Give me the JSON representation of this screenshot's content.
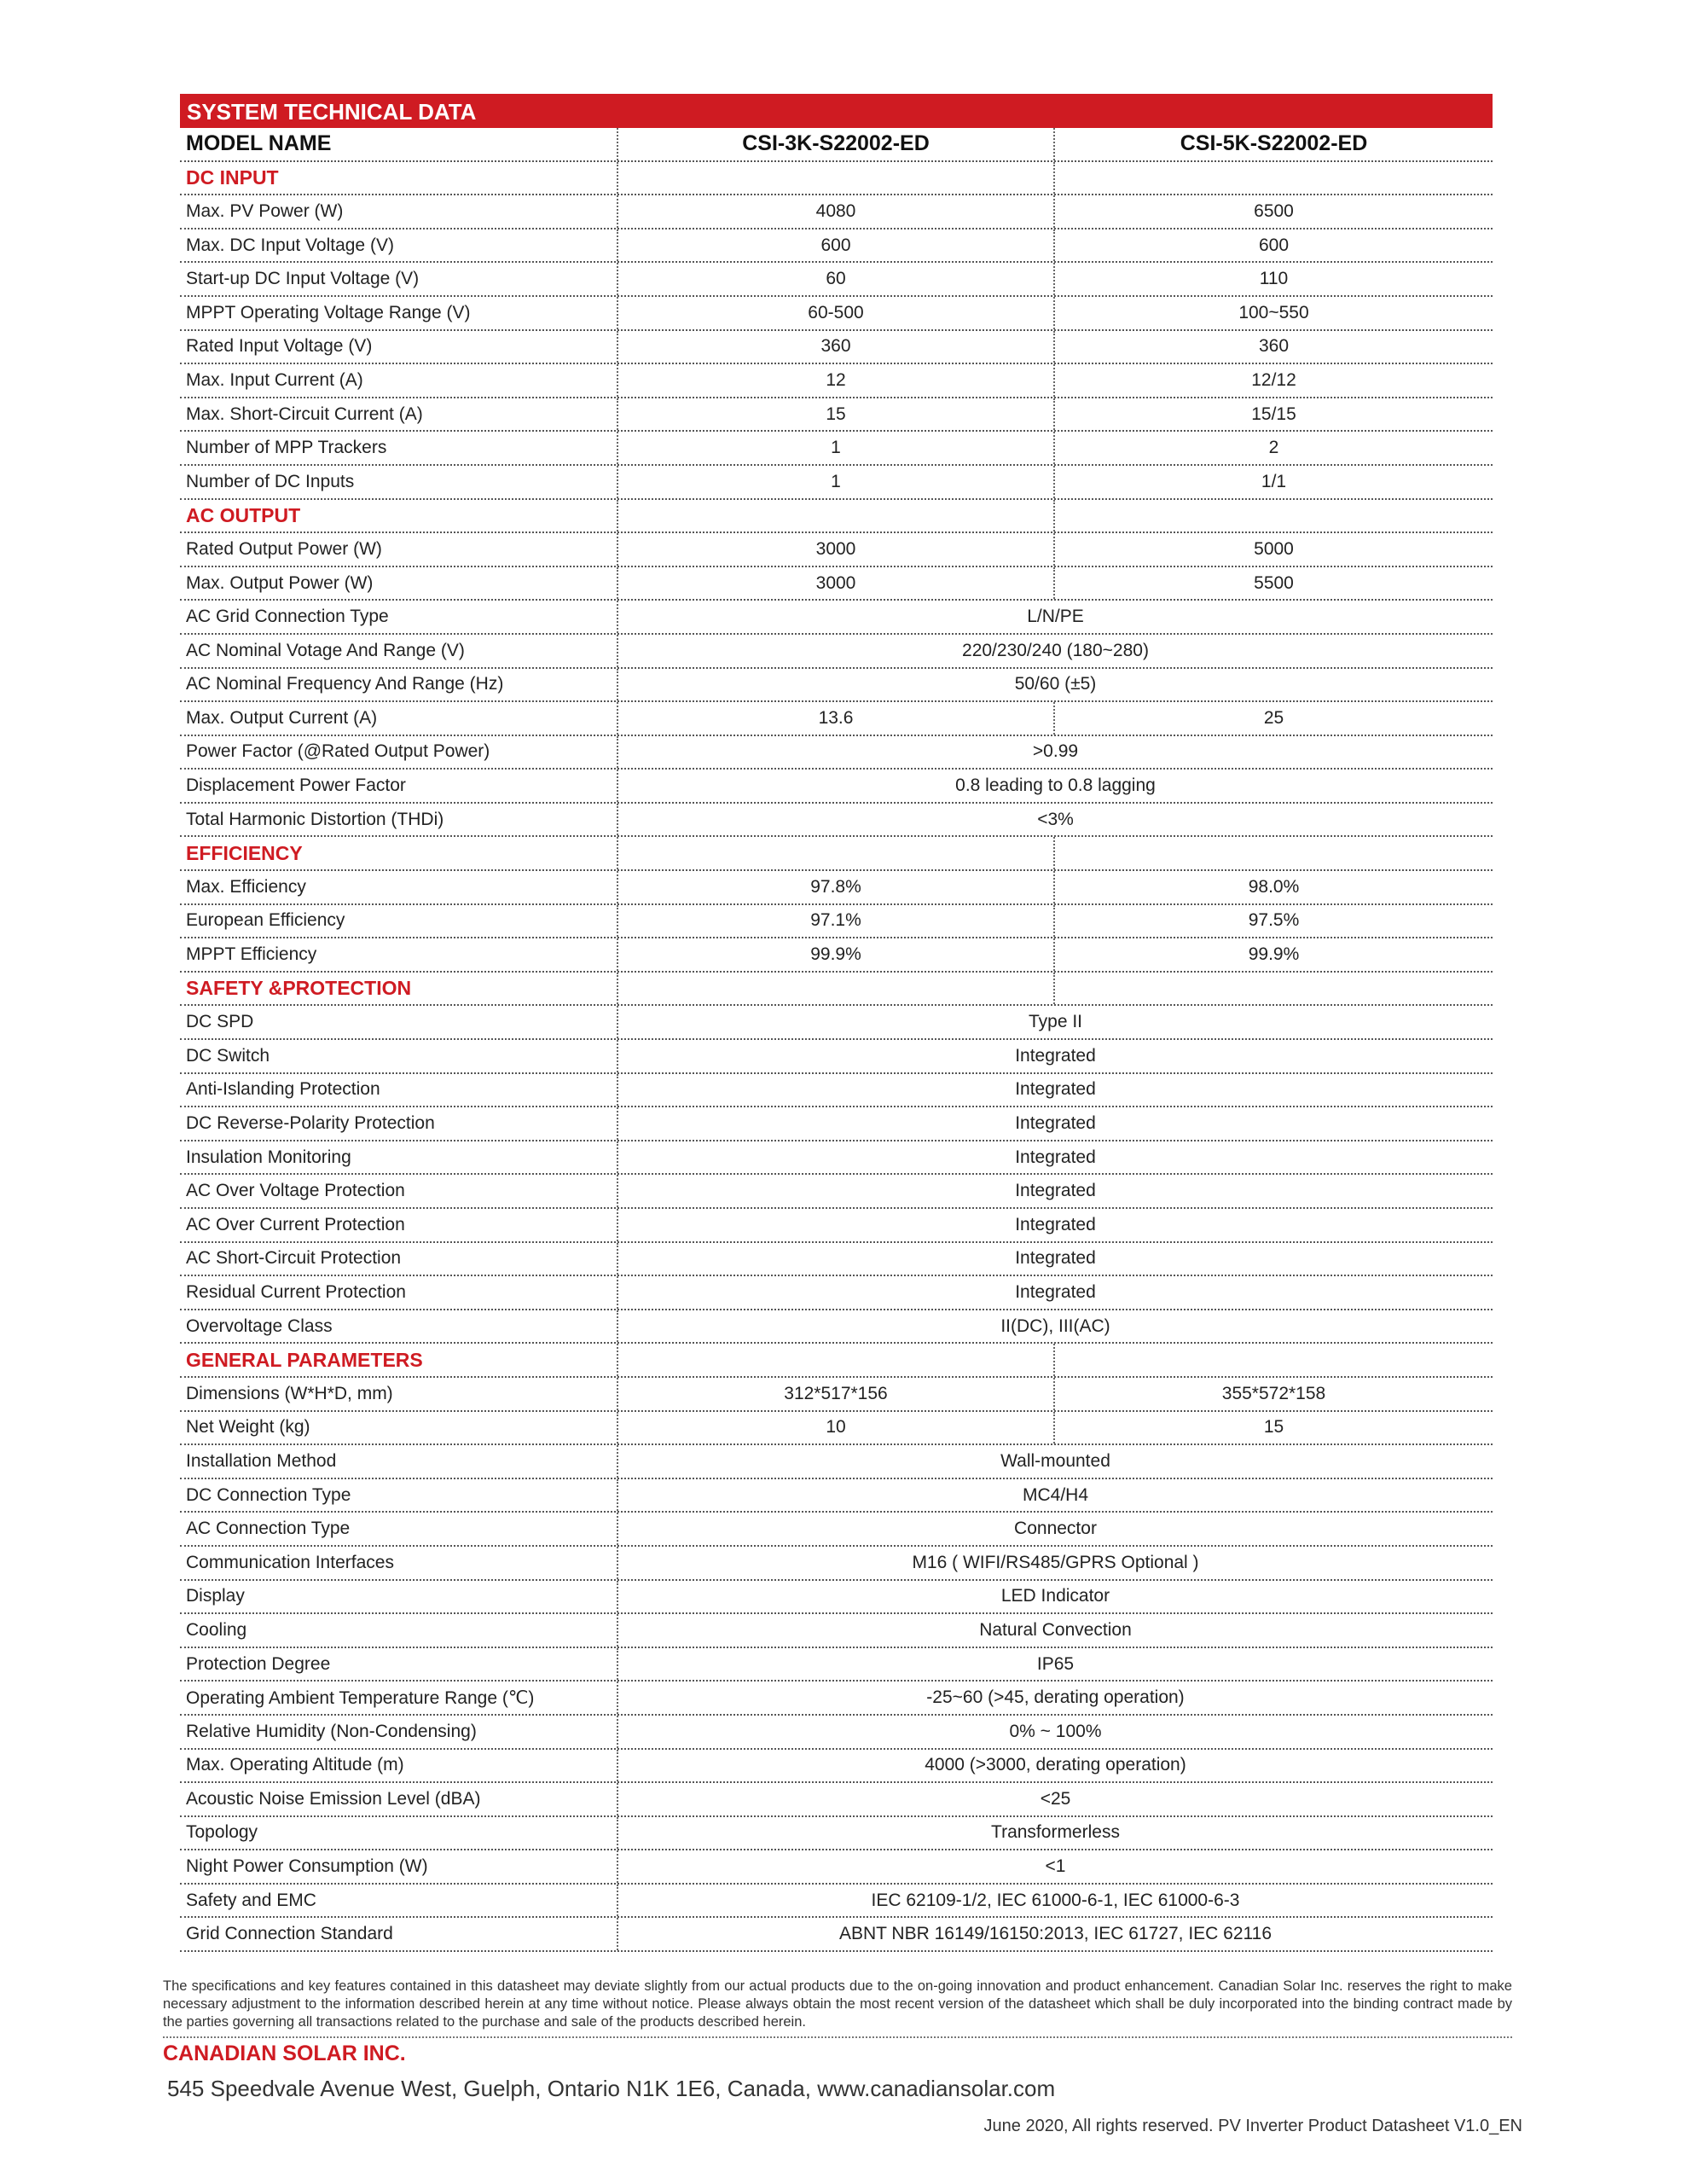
{
  "title": "SYSTEM TECHNICAL DATA",
  "model_row": {
    "label": "MODEL NAME",
    "models": [
      "CSI-3K-S22002-ED",
      "CSI-5K-S22002-ED"
    ]
  },
  "sections": [
    {
      "heading": "DC INPUT",
      "rows": [
        {
          "label": "Max. PV Power (W)",
          "values": [
            "4080",
            "6500"
          ]
        },
        {
          "label": "Max. DC Input Voltage (V)",
          "values": [
            "600",
            "600"
          ]
        },
        {
          "label": "Start-up DC Input Voltage (V)",
          "values": [
            "60",
            "110"
          ]
        },
        {
          "label": "MPPT Operating Voltage Range (V)",
          "values": [
            "60-500",
            "100~550"
          ]
        },
        {
          "label": "Rated Input Voltage (V)",
          "values": [
            "360",
            "360"
          ]
        },
        {
          "label": "Max. Input Current (A)",
          "values": [
            "12",
            "12/12"
          ]
        },
        {
          "label": "Max. Short-Circuit Current (A)",
          "values": [
            "15",
            "15/15"
          ]
        },
        {
          "label": "Number of MPP Trackers",
          "values": [
            "1",
            "2"
          ]
        },
        {
          "label": "Number of DC Inputs",
          "values": [
            "1",
            "1/1"
          ]
        }
      ]
    },
    {
      "heading": "AC OUTPUT",
      "rows": [
        {
          "label": "Rated Output Power (W)",
          "values": [
            "3000",
            "5000"
          ]
        },
        {
          "label": "Max. Output Power (W)",
          "values": [
            "3000",
            "5500"
          ]
        },
        {
          "label": "AC Grid Connection Type",
          "value": "L/N/PE"
        },
        {
          "label": "AC Nominal Votage And Range (V)",
          "value": "220/230/240 (180~280)"
        },
        {
          "label": "AC Nominal Frequency And Range (Hz)",
          "value": "50/60 (±5)"
        },
        {
          "label": "Max. Output Current (A)",
          "values": [
            "13.6",
            "25"
          ]
        },
        {
          "label": "Power Factor (@Rated Output Power)",
          "value": ">0.99"
        },
        {
          "label": "Displacement Power Factor",
          "value": "0.8 leading to 0.8 lagging"
        },
        {
          "label": "Total Harmonic Distortion (THDi)",
          "value": "<3%"
        }
      ]
    },
    {
      "heading": "EFFICIENCY",
      "rows": [
        {
          "label": "Max. Efficiency",
          "values": [
            "97.8%",
            "98.0%"
          ]
        },
        {
          "label": "European Efficiency",
          "values": [
            "97.1%",
            "97.5%"
          ]
        },
        {
          "label": "MPPT Efficiency",
          "values": [
            "99.9%",
            "99.9%"
          ]
        }
      ]
    },
    {
      "heading": "SAFETY &PROTECTION",
      "rows": [
        {
          "label": "DC SPD",
          "value": "Type II"
        },
        {
          "label": "DC Switch",
          "value": "Integrated"
        },
        {
          "label": "Anti-Islanding Protection",
          "value": "Integrated"
        },
        {
          "label": "DC Reverse-Polarity Protection",
          "value": "Integrated"
        },
        {
          "label": "Insulation Monitoring",
          "value": "Integrated"
        },
        {
          "label": "AC Over Voltage Protection",
          "value": "Integrated"
        },
        {
          "label": "AC Over Current Protection",
          "value": "Integrated"
        },
        {
          "label": "AC Short-Circuit Protection",
          "value": "Integrated"
        },
        {
          "label": "Residual Current Protection",
          "value": "Integrated"
        },
        {
          "label": "Overvoltage Class",
          "value": "II(DC), III(AC)"
        }
      ]
    },
    {
      "heading": "GENERAL PARAMETERS",
      "rows": [
        {
          "label": "Dimensions (W*H*D, mm)",
          "values": [
            "312*517*156",
            "355*572*158"
          ]
        },
        {
          "label": "Net Weight (kg)",
          "values": [
            "10",
            "15"
          ]
        },
        {
          "label": "Installation Method",
          "value": "Wall-mounted"
        },
        {
          "label": "DC Connection Type",
          "value": "MC4/H4"
        },
        {
          "label": "AC Connection Type",
          "value": "Connector"
        },
        {
          "label": "Communication Interfaces",
          "value": "M16 ( WIFI/RS485/GPRS Optional )"
        },
        {
          "label": "Display",
          "value": "LED Indicator"
        },
        {
          "label": "Cooling",
          "value": "Natural Convection"
        },
        {
          "label": "Protection Degree",
          "value": "IP65"
        },
        {
          "label": "Operating Ambient Temperature Range (℃)",
          "value": "-25~60 (>45, derating operation)"
        },
        {
          "label": "Relative Humidity (Non-Condensing)",
          "value": "0% ~ 100%"
        },
        {
          "label": "Max. Operating Altitude (m)",
          "value": "4000 (>3000, derating operation)"
        },
        {
          "label": "Acoustic Noise Emission Level (dBA)",
          "value": "<25"
        },
        {
          "label": "Topology",
          "value": "Transformerless"
        },
        {
          "label": "Night Power Consumption (W)",
          "value": "<1"
        },
        {
          "label": "Safety and EMC",
          "value": "IEC 62109-1/2, IEC 61000-6-1, IEC 61000-6-3"
        },
        {
          "label": "Grid Connection Standard",
          "value": "ABNT NBR 16149/16150:2013, IEC 61727, IEC 62116"
        }
      ]
    }
  ],
  "footer": {
    "disclaimer": "The specifications and key features contained in this datasheet may deviate slightly from our actual products due to the on-going innovation and product enhancement. Canadian Solar Inc. reserves the right to make necessary adjustment to the information described herein at any time without notice. Please always obtain the most recent version of the datasheet which shall be duly incorporated into the binding contract made by the parties governing all transactions related to the purchase and sale of the products described herein.",
    "company": "CANADIAN SOLAR INC.",
    "address": "545 Speedvale Avenue West, Guelph, Ontario N1K 1E6, Canada,  www.canadiansolar.com",
    "rights": "June 2020, All rights reserved.  PV Inverter Product Datasheet V1.0_EN"
  },
  "colors": {
    "accent": "#cf1b22"
  }
}
